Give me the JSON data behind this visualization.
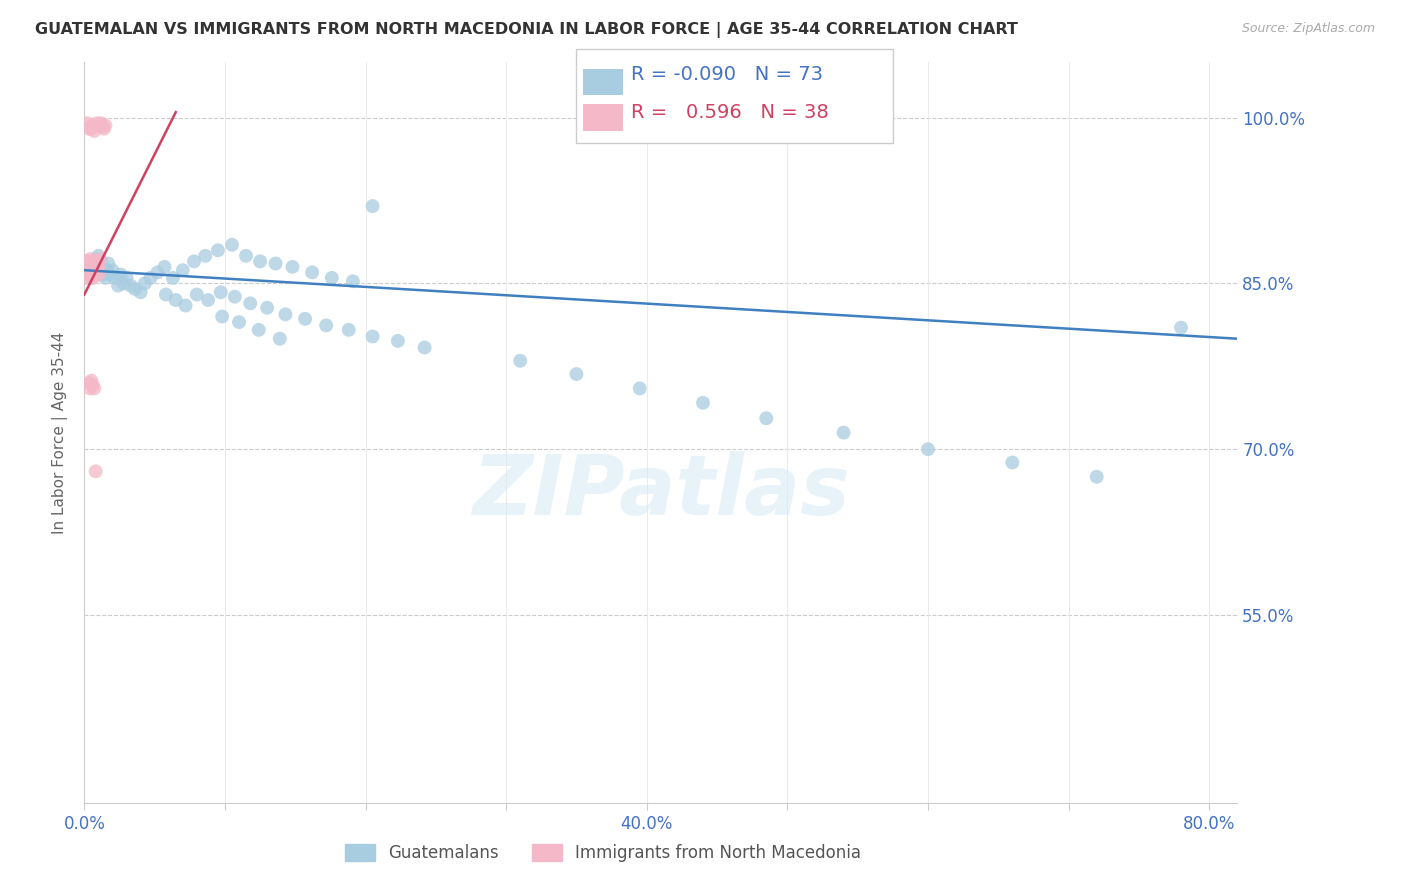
{
  "title": "GUATEMALAN VS IMMIGRANTS FROM NORTH MACEDONIA IN LABOR FORCE | AGE 35-44 CORRELATION CHART",
  "source": "Source: ZipAtlas.com",
  "ylabel": "In Labor Force | Age 35-44",
  "xlim": [
    0.0,
    0.82
  ],
  "ylim": [
    0.38,
    1.05
  ],
  "yticks": [
    0.55,
    0.7,
    0.85,
    1.0
  ],
  "ytick_labels": [
    "55.0%",
    "70.0%",
    "85.0%",
    "100.0%"
  ],
  "xticks": [
    0.0,
    0.1,
    0.2,
    0.3,
    0.4,
    0.5,
    0.6,
    0.7,
    0.8
  ],
  "xtick_labels": [
    "0.0%",
    "",
    "",
    "",
    "40.0%",
    "",
    "",
    "",
    "80.0%"
  ],
  "blue_color": "#a8cce0",
  "pink_color": "#f4b8c8",
  "blue_line_color": "#4080c0",
  "pink_line_color": "#d04060",
  "R_blue": -0.09,
  "N_blue": 73,
  "R_pink": 0.596,
  "N_pink": 38,
  "legend_label_blue": "Guatemalans",
  "legend_label_pink": "Immigrants from North Macedonia",
  "watermark": "ZIPatlas",
  "blue_scatter_x": [
    0.002,
    0.003,
    0.004,
    0.005,
    0.006,
    0.007,
    0.008,
    0.009,
    0.01,
    0.011,
    0.012,
    0.013,
    0.015,
    0.016,
    0.017,
    0.018,
    0.02,
    0.022,
    0.024,
    0.026,
    0.028,
    0.03,
    0.033,
    0.036,
    0.04,
    0.043,
    0.047,
    0.052,
    0.057,
    0.063,
    0.07,
    0.078,
    0.086,
    0.095,
    0.105,
    0.115,
    0.125,
    0.136,
    0.148,
    0.162,
    0.176,
    0.191,
    0.058,
    0.065,
    0.072,
    0.08,
    0.088,
    0.097,
    0.107,
    0.118,
    0.13,
    0.143,
    0.157,
    0.172,
    0.188,
    0.205,
    0.223,
    0.242,
    0.098,
    0.11,
    0.124,
    0.139,
    0.31,
    0.35,
    0.395,
    0.44,
    0.485,
    0.54,
    0.6,
    0.66,
    0.72,
    0.78,
    0.205
  ],
  "blue_scatter_y": [
    0.87,
    0.865,
    0.86,
    0.855,
    0.868,
    0.858,
    0.872,
    0.862,
    0.875,
    0.865,
    0.87,
    0.858,
    0.855,
    0.862,
    0.868,
    0.858,
    0.862,
    0.855,
    0.848,
    0.858,
    0.85,
    0.855,
    0.848,
    0.845,
    0.842,
    0.85,
    0.855,
    0.86,
    0.865,
    0.855,
    0.862,
    0.87,
    0.875,
    0.88,
    0.885,
    0.875,
    0.87,
    0.868,
    0.865,
    0.86,
    0.855,
    0.852,
    0.84,
    0.835,
    0.83,
    0.84,
    0.835,
    0.842,
    0.838,
    0.832,
    0.828,
    0.822,
    0.818,
    0.812,
    0.808,
    0.802,
    0.798,
    0.792,
    0.82,
    0.815,
    0.808,
    0.8,
    0.78,
    0.768,
    0.755,
    0.742,
    0.728,
    0.715,
    0.7,
    0.688,
    0.675,
    0.81,
    0.92
  ],
  "pink_scatter_x": [
    0.001,
    0.002,
    0.002,
    0.003,
    0.003,
    0.004,
    0.004,
    0.005,
    0.005,
    0.006,
    0.006,
    0.007,
    0.007,
    0.008,
    0.008,
    0.009,
    0.009,
    0.01,
    0.01,
    0.011,
    0.012,
    0.013,
    0.014,
    0.015,
    0.002,
    0.003,
    0.004,
    0.005,
    0.006,
    0.007,
    0.008,
    0.009,
    0.003,
    0.004,
    0.005,
    0.006,
    0.007,
    0.008
  ],
  "pink_scatter_y": [
    0.862,
    0.855,
    0.87,
    0.858,
    0.865,
    0.86,
    0.872,
    0.858,
    0.865,
    0.868,
    0.855,
    0.862,
    0.87,
    0.858,
    0.868,
    0.862,
    0.87,
    0.858,
    0.865,
    0.872,
    0.995,
    0.992,
    0.99,
    0.993,
    0.995,
    0.99,
    0.992,
    0.99,
    0.993,
    0.988,
    0.992,
    0.995,
    0.76,
    0.755,
    0.762,
    0.758,
    0.755,
    0.68
  ]
}
